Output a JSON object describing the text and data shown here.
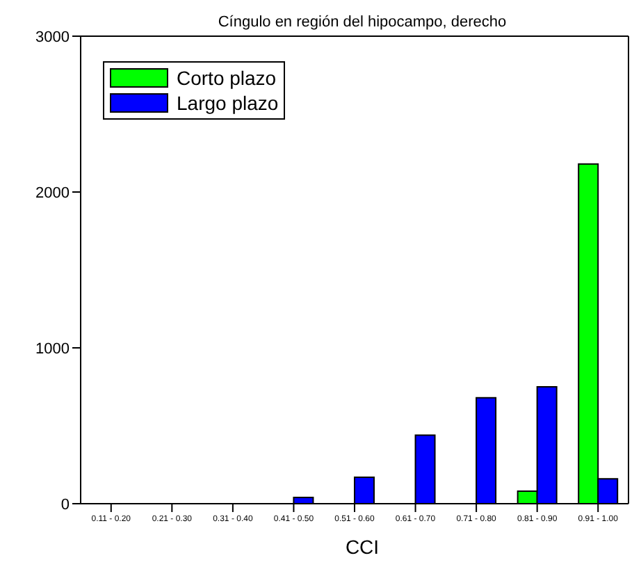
{
  "chart_data": {
    "type": "bar",
    "title": "Cíngulo en región del hipocampo, derecho",
    "xlabel": "CCI",
    "categories": [
      "0.11 - 0.20",
      "0.21 - 0.30",
      "0.31 - 0.40",
      "0.41 - 0.50",
      "0.51 - 0.60",
      "0.61 - 0.70",
      "0.71 - 0.80",
      "0.81 - 0.90",
      "0.91 - 1.00"
    ],
    "series": [
      {
        "name": "Corto plazo",
        "color": "#00ff00",
        "values": [
          0,
          0,
          0,
          0,
          0,
          0,
          0,
          80,
          2180
        ]
      },
      {
        "name": "Largo plazo",
        "color": "#0000ff",
        "values": [
          0,
          0,
          0,
          40,
          170,
          440,
          680,
          750,
          160
        ]
      }
    ],
    "ylim": [
      0,
      3000
    ],
    "yticks": [
      0,
      1000,
      2000,
      3000
    ],
    "grid": false,
    "legend": "top left"
  }
}
